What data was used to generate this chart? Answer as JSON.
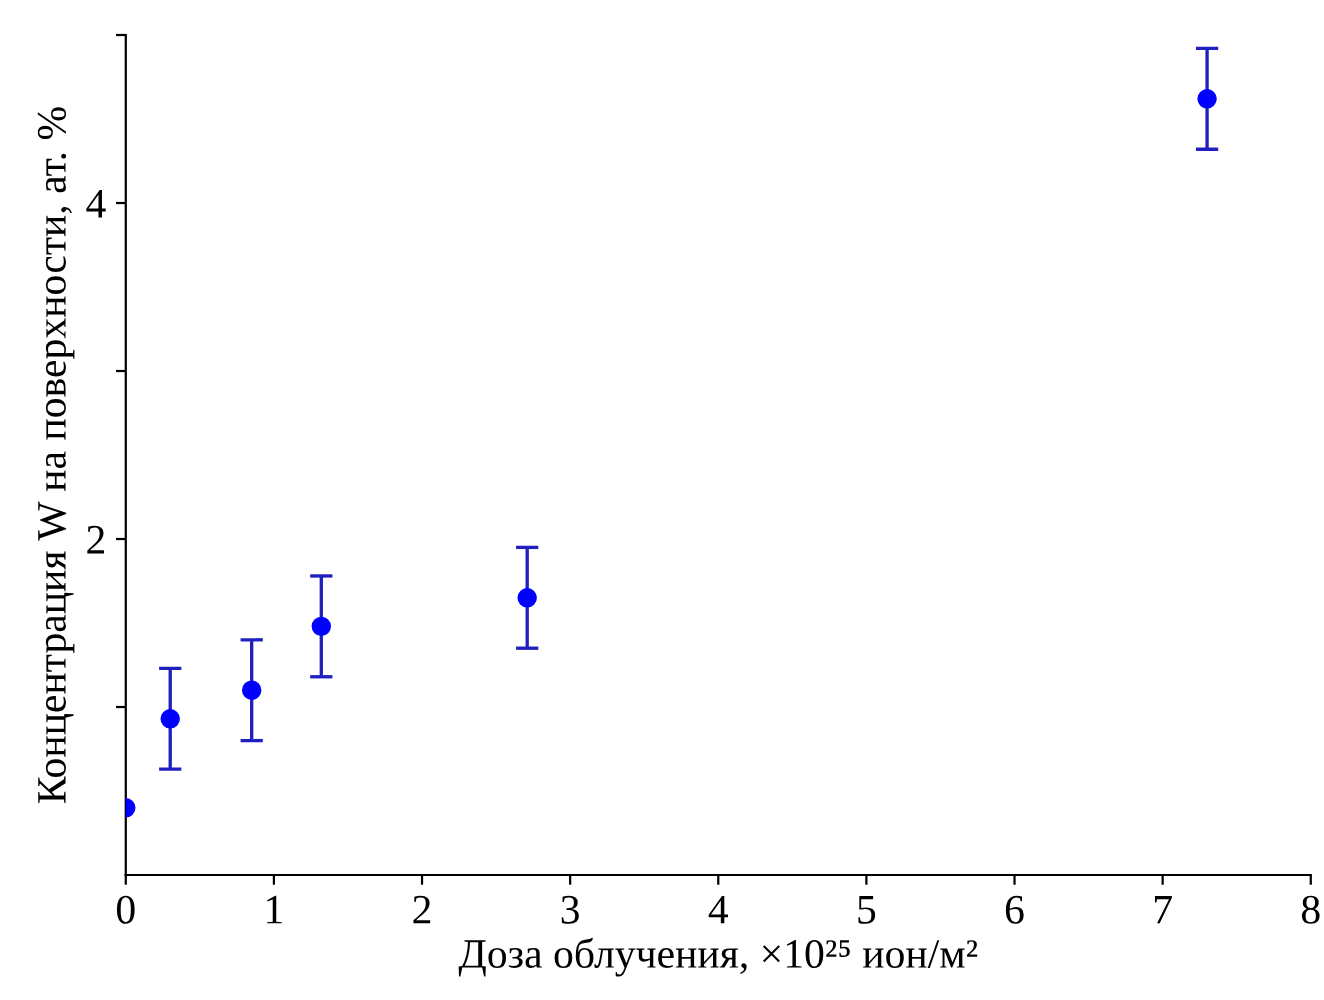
{
  "chart_data": {
    "type": "scatter",
    "xlabel": "Доза облучения, ×10²⁵ ион/м²",
    "ylabel": "Концентрация W на поверхности, ат. %",
    "x": [
      0,
      0.3,
      0.85,
      1.32,
      2.71,
      7.3
    ],
    "values": [
      0.4,
      0.93,
      1.1,
      1.48,
      1.65,
      4.62
    ],
    "errors": [
      null,
      0.3,
      0.3,
      0.3,
      0.3,
      0.3
    ],
    "color": "#0000ff",
    "marker": "circle",
    "grid": false,
    "xlim": [
      0,
      8
    ],
    "xticks": [
      0,
      1,
      2,
      3,
      4,
      5,
      6,
      7,
      8
    ],
    "ylim": [
      0,
      5
    ],
    "yticks": [
      {
        "value": 1,
        "label": null
      },
      2,
      {
        "value": 3,
        "label": null
      },
      4,
      {
        "value": 5,
        "label": null
      }
    ]
  }
}
